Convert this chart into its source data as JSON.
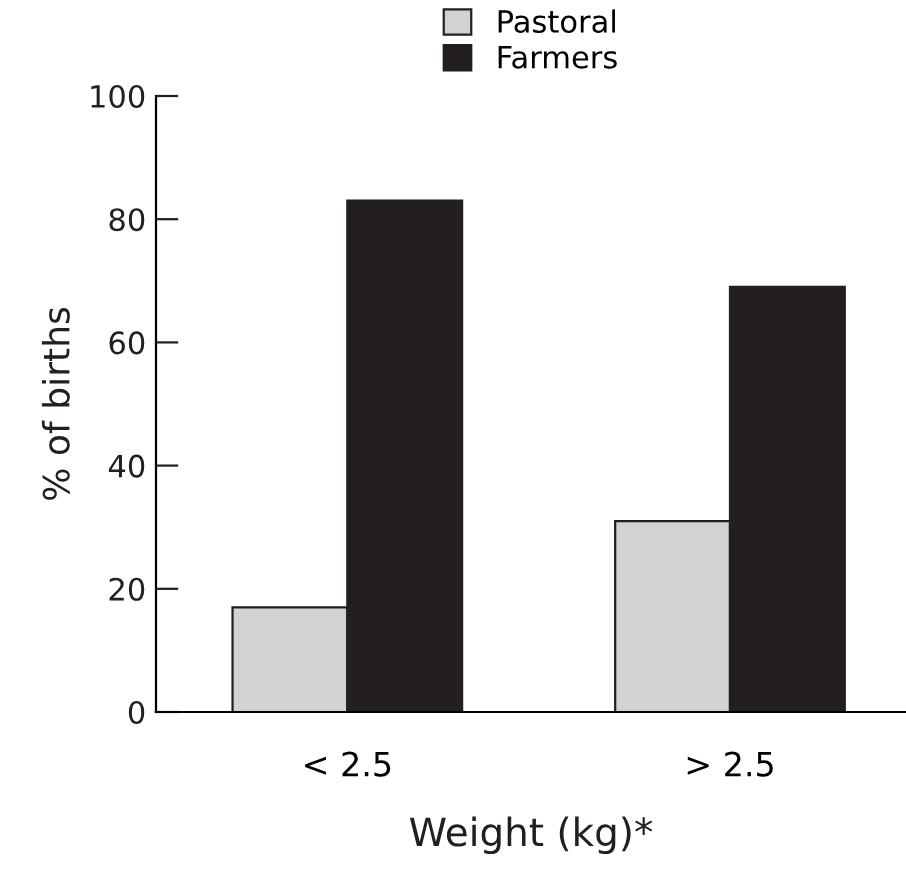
{
  "chart_data": {
    "type": "bar",
    "xlabel": "Weight (kg)*",
    "ylabel": "% of births",
    "categories": [
      "< 2.5",
      "> 2.5"
    ],
    "series": [
      {
        "name": "Pastoral",
        "color": "#d1d2d4",
        "values": [
          17,
          31
        ]
      },
      {
        "name": "Farmers",
        "color": "#231f20",
        "values": [
          83,
          69
        ]
      }
    ],
    "ylim": [
      0,
      100
    ],
    "yticks": [
      0,
      20,
      40,
      60,
      80,
      100
    ],
    "grid": false,
    "legend": "top"
  }
}
